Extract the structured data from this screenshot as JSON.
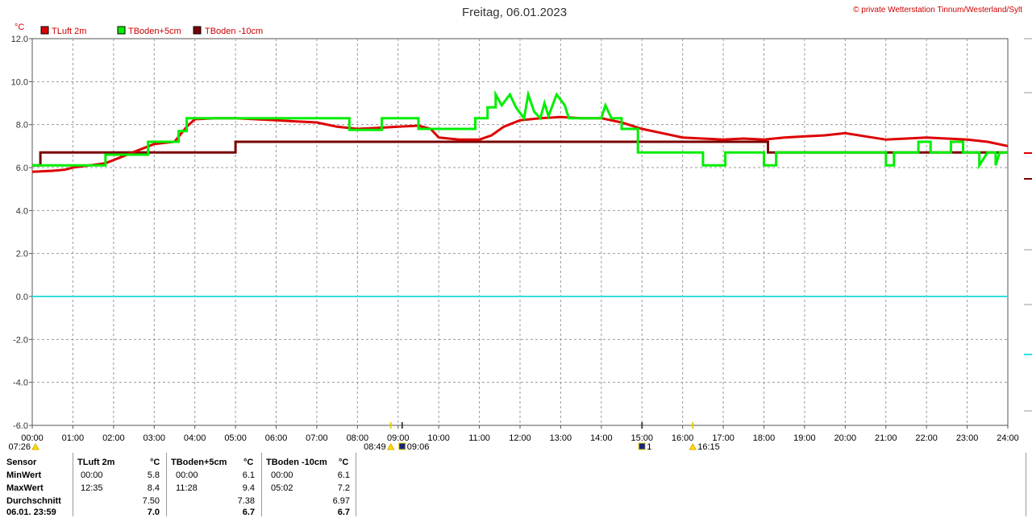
{
  "header": {
    "title": "Freitag, 06.01.2023",
    "copyright": "© private Wetterstation Tinnum/Westerland/Sylt"
  },
  "colors": {
    "tluft": "#dd0000",
    "tboden5": "#00ee00",
    "tboden10": "#7a0000",
    "zero_line": "#33dddd",
    "grid": "#999999"
  },
  "chart_data": {
    "type": "line",
    "unit_label": "°C",
    "ylim": [
      -6,
      12
    ],
    "yticks": [
      12,
      10,
      8,
      6,
      4,
      2,
      0,
      -2,
      -4,
      -6
    ],
    "ytick_labels": [
      "12.0",
      "10.0",
      "8.0",
      "6.0",
      "4.0",
      "2.0",
      "0.0",
      "-2.0",
      "-4.0",
      "-6.0"
    ],
    "xlim": [
      0,
      24
    ],
    "xtick_labels": [
      "00:00",
      "01:00",
      "02:00",
      "03:00",
      "04:00",
      "05:00",
      "06:00",
      "07:00",
      "08:00",
      "09:00",
      "10:00",
      "11:00",
      "12:00",
      "13:00",
      "14:00",
      "15:00",
      "16:00",
      "17:00",
      "18:00",
      "19:00",
      "20:00",
      "21:00",
      "22:00",
      "23:00",
      "24:00"
    ],
    "grid": true,
    "legend_position": "top-left",
    "series": [
      {
        "name": "TLuft 2m",
        "color": "#dd0000",
        "points": [
          [
            0,
            5.8
          ],
          [
            0.5,
            5.85
          ],
          [
            0.8,
            5.9
          ],
          [
            1.0,
            6.0
          ],
          [
            1.4,
            6.1
          ],
          [
            1.8,
            6.2
          ],
          [
            2.2,
            6.5
          ],
          [
            2.6,
            6.8
          ],
          [
            3.0,
            7.1
          ],
          [
            3.5,
            7.2
          ],
          [
            3.8,
            7.9
          ],
          [
            4.0,
            8.25
          ],
          [
            4.5,
            8.3
          ],
          [
            5.0,
            8.3
          ],
          [
            5.5,
            8.25
          ],
          [
            6.0,
            8.2
          ],
          [
            6.5,
            8.15
          ],
          [
            7.0,
            8.1
          ],
          [
            7.5,
            7.9
          ],
          [
            8.0,
            7.8
          ],
          [
            8.5,
            7.85
          ],
          [
            9.0,
            7.9
          ],
          [
            9.5,
            7.95
          ],
          [
            9.8,
            7.8
          ],
          [
            10.0,
            7.4
          ],
          [
            10.5,
            7.3
          ],
          [
            11.0,
            7.3
          ],
          [
            11.3,
            7.5
          ],
          [
            11.6,
            7.9
          ],
          [
            12.0,
            8.2
          ],
          [
            12.5,
            8.3
          ],
          [
            13.0,
            8.35
          ],
          [
            13.5,
            8.3
          ],
          [
            14.0,
            8.3
          ],
          [
            14.5,
            8.1
          ],
          [
            15.0,
            7.8
          ],
          [
            15.5,
            7.6
          ],
          [
            16.0,
            7.4
          ],
          [
            16.5,
            7.35
          ],
          [
            17.0,
            7.3
          ],
          [
            17.5,
            7.35
          ],
          [
            18.0,
            7.3
          ],
          [
            18.5,
            7.4
          ],
          [
            19.0,
            7.45
          ],
          [
            19.5,
            7.5
          ],
          [
            20.0,
            7.6
          ],
          [
            20.5,
            7.45
          ],
          [
            21.0,
            7.3
          ],
          [
            21.5,
            7.35
          ],
          [
            22.0,
            7.4
          ],
          [
            22.5,
            7.35
          ],
          [
            23.0,
            7.3
          ],
          [
            23.5,
            7.2
          ],
          [
            24.0,
            7.0
          ]
        ]
      },
      {
        "name": "TBoden+5cm",
        "color": "#00ee00",
        "points": [
          [
            0,
            6.1
          ],
          [
            1.8,
            6.1
          ],
          [
            1.8,
            6.6
          ],
          [
            2.85,
            6.6
          ],
          [
            2.85,
            7.2
          ],
          [
            3.6,
            7.2
          ],
          [
            3.6,
            7.7
          ],
          [
            3.8,
            7.7
          ],
          [
            3.8,
            8.3
          ],
          [
            7.8,
            8.3
          ],
          [
            7.8,
            7.75
          ],
          [
            8.6,
            7.75
          ],
          [
            8.6,
            8.3
          ],
          [
            9.5,
            8.3
          ],
          [
            9.5,
            7.8
          ],
          [
            10.9,
            7.8
          ],
          [
            10.9,
            8.3
          ],
          [
            11.2,
            8.3
          ],
          [
            11.2,
            8.8
          ],
          [
            11.4,
            8.8
          ],
          [
            11.4,
            9.4
          ],
          [
            11.55,
            8.9
          ],
          [
            11.75,
            9.4
          ],
          [
            11.9,
            8.8
          ],
          [
            12.1,
            8.3
          ],
          [
            12.2,
            9.4
          ],
          [
            12.35,
            8.6
          ],
          [
            12.5,
            8.3
          ],
          [
            12.6,
            9.0
          ],
          [
            12.7,
            8.4
          ],
          [
            12.9,
            9.4
          ],
          [
            13.1,
            8.9
          ],
          [
            13.2,
            8.3
          ],
          [
            14.0,
            8.3
          ],
          [
            14.1,
            8.9
          ],
          [
            14.25,
            8.3
          ],
          [
            14.5,
            8.3
          ],
          [
            14.5,
            7.8
          ],
          [
            14.9,
            7.8
          ],
          [
            14.9,
            6.7
          ],
          [
            16.5,
            6.7
          ],
          [
            16.5,
            6.1
          ],
          [
            17.05,
            6.1
          ],
          [
            17.05,
            6.7
          ],
          [
            18.0,
            6.7
          ],
          [
            18.0,
            6.1
          ],
          [
            18.3,
            6.1
          ],
          [
            18.3,
            6.7
          ],
          [
            21.0,
            6.7
          ],
          [
            21.0,
            6.1
          ],
          [
            21.2,
            6.1
          ],
          [
            21.2,
            6.7
          ],
          [
            21.8,
            6.7
          ],
          [
            21.8,
            7.2
          ],
          [
            22.1,
            7.2
          ],
          [
            22.1,
            6.7
          ],
          [
            22.6,
            6.7
          ],
          [
            22.6,
            7.2
          ],
          [
            22.9,
            7.2
          ],
          [
            22.9,
            6.7
          ],
          [
            23.3,
            6.7
          ],
          [
            23.3,
            6.1
          ],
          [
            23.5,
            6.7
          ],
          [
            23.7,
            6.7
          ],
          [
            23.7,
            6.1
          ],
          [
            23.8,
            6.7
          ],
          [
            24.0,
            6.7
          ]
        ]
      },
      {
        "name": "TBoden -10cm",
        "color": "#7a0000",
        "points": [
          [
            0,
            6.1
          ],
          [
            0.2,
            6.1
          ],
          [
            0.2,
            6.7
          ],
          [
            5.0,
            6.7
          ],
          [
            5.0,
            7.2
          ],
          [
            18.1,
            7.2
          ],
          [
            18.1,
            6.7
          ],
          [
            24.0,
            6.7
          ]
        ]
      }
    ],
    "events": [
      {
        "label": "07:26",
        "hour": 0.0,
        "symbol": "sun"
      },
      {
        "label": "08:49",
        "hour": 8.82,
        "symbol": "sun"
      },
      {
        "label": "09:06",
        "hour": 9.1,
        "symbol": "moon"
      },
      {
        "label": "1",
        "hour": 15.0,
        "symbol": "moon"
      },
      {
        "label": "16:15",
        "hour": 16.25,
        "symbol": "sun"
      }
    ]
  },
  "stats": {
    "headers": {
      "sensor": "Sensor",
      "tluft": "TLuft 2m",
      "tboden5": "TBoden+5cm",
      "tboden10": "TBoden -10cm",
      "unit": "°C"
    },
    "rows": [
      {
        "label": "MinWert",
        "tluft_time": "00:00",
        "tluft_val": "5.8",
        "tb5_time": "00:00",
        "tb5_val": "6.1",
        "tb10_time": "00:00",
        "tb10_val": "6.1"
      },
      {
        "label": "MaxWert",
        "tluft_time": "12:35",
        "tluft_val": "8.4",
        "tb5_time": "11:28",
        "tb5_val": "9.4",
        "tb10_time": "05:02",
        "tb10_val": "7.2"
      },
      {
        "label": "Durchschnitt",
        "tluft_time": "",
        "tluft_val": "7.50",
        "tb5_time": "",
        "tb5_val": "7.38",
        "tb10_time": "",
        "tb10_val": "6.97"
      },
      {
        "label": "06.01. 23:59",
        "tluft_time": "",
        "tluft_val": "7.0",
        "tb5_time": "",
        "tb5_val": "6.7",
        "tb10_time": "",
        "tb10_val": "6.7"
      }
    ]
  }
}
